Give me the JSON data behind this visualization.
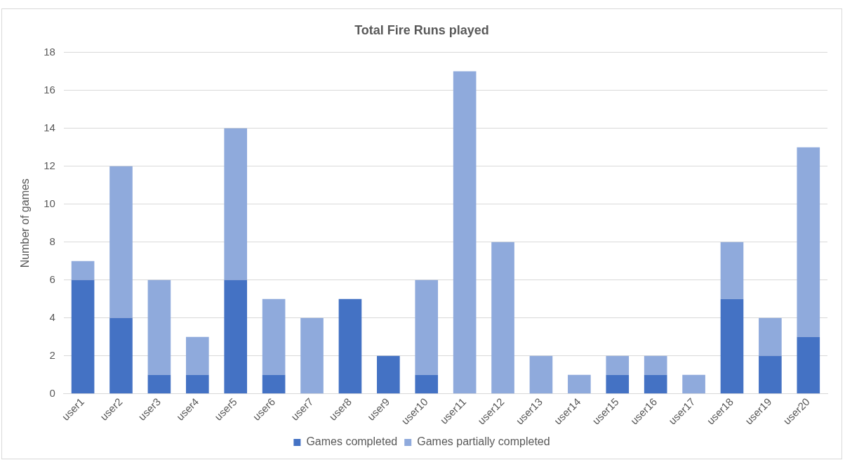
{
  "chart_data": {
    "type": "bar",
    "title": "Total Fire Runs played",
    "ylabel": "Number of games",
    "categories": [
      "user1",
      "user2",
      "user3",
      "user4",
      "user5",
      "user6",
      "user7",
      "user8",
      "user9",
      "user10",
      "user11",
      "user12",
      "user13",
      "user14",
      "user15",
      "user16",
      "user17",
      "user18",
      "user19",
      "user20"
    ],
    "series": [
      {
        "name": "Games completed",
        "color": "#4472c4",
        "values": [
          6,
          4,
          1,
          1,
          6,
          1,
          0,
          5,
          2,
          1,
          0,
          0,
          0,
          0,
          1,
          1,
          0,
          5,
          2,
          3
        ]
      },
      {
        "name": "Games partially completed",
        "color": "#8faadc",
        "values": [
          1,
          8,
          5,
          2,
          8,
          4,
          4,
          0,
          0,
          5,
          17,
          8,
          2,
          1,
          1,
          1,
          1,
          3,
          2,
          10
        ]
      }
    ],
    "stacked": true,
    "ylim": [
      0,
      18
    ],
    "yticks": [
      0,
      2,
      4,
      6,
      8,
      10,
      12,
      14,
      16,
      18
    ],
    "grid": "y",
    "legend": "bottom"
  }
}
